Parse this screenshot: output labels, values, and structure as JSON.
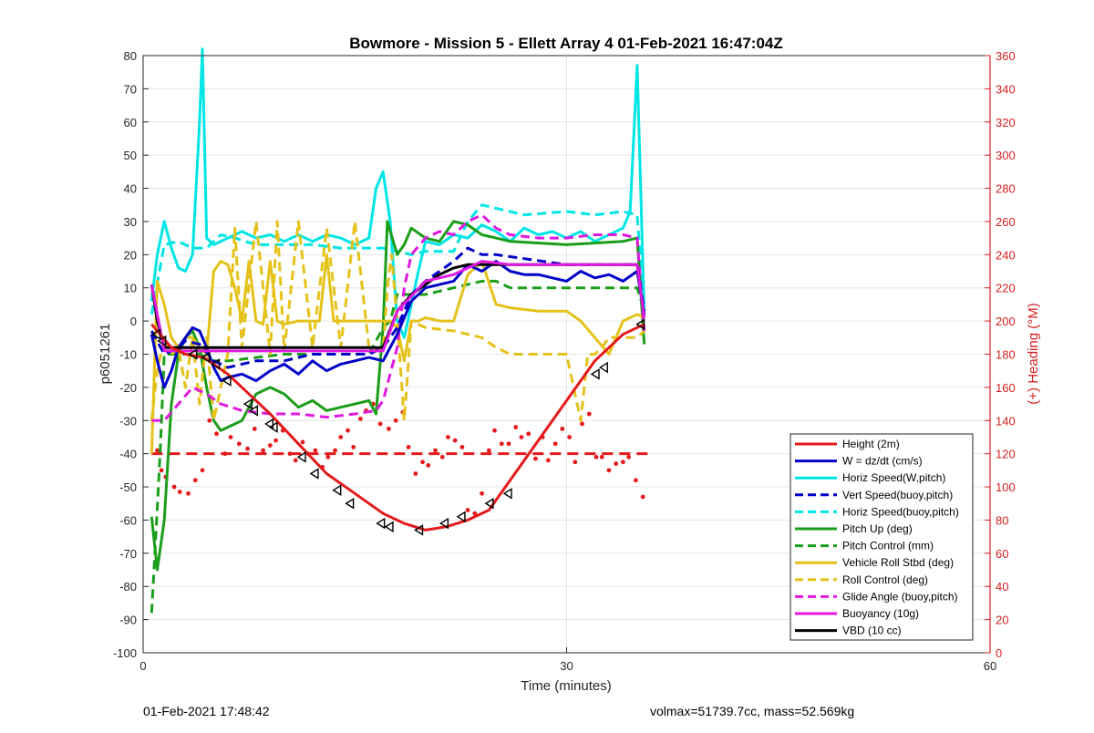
{
  "chart_data": {
    "type": "line",
    "title": "Bowmore - Mission 5 - Ellett Array 4 01-Feb-2021 16:47:04Z",
    "xlabel": "Time (minutes)",
    "ylabel": "p6051261",
    "y2label": "(+) Heading (°M)",
    "xlim": [
      0,
      60
    ],
    "ylim": [
      -100,
      80
    ],
    "y2lim": [
      0,
      360
    ],
    "xticks": [
      0,
      30,
      60
    ],
    "yticks": [
      -100,
      -90,
      -80,
      -70,
      -60,
      -50,
      -40,
      -30,
      -20,
      -10,
      0,
      10,
      20,
      30,
      40,
      50,
      60,
      70,
      80
    ],
    "y2ticks": [
      0,
      20,
      40,
      60,
      80,
      100,
      120,
      140,
      160,
      180,
      200,
      220,
      240,
      260,
      280,
      300,
      320,
      340,
      360
    ],
    "grid": true,
    "legend_position": "bottom-right",
    "colors": {
      "height": "#e41a1c",
      "w": "#0000c8",
      "cyan": "#00e5e5",
      "green": "#1a9e1a",
      "yellow": "#e5c21a",
      "magenta": "#e01ae0",
      "black": "#000000",
      "axis_right": "#d62020"
    },
    "series": [
      {
        "name": "Height (2m)",
        "color": "#e41a1c",
        "style": "solid",
        "x": [
          0.6,
          1.2,
          2,
          3,
          4.3,
          6,
          7.5,
          9,
          11,
          13,
          15,
          17,
          18.5,
          20,
          21.5,
          23,
          24.5,
          26,
          28,
          30,
          32,
          34,
          35.5
        ],
        "y": [
          -1,
          -4,
          -8,
          -10,
          -11,
          -16,
          -22,
          -28,
          -37,
          -46,
          -52,
          -58,
          -61,
          -63,
          -62,
          -60,
          -57,
          -48,
          -36,
          -24,
          -12,
          -4,
          -1
        ]
      },
      {
        "name": "W = dz/dt (cm/s)",
        "color": "#0000c8",
        "style": "solid",
        "x": [
          0.6,
          1,
          1.5,
          2,
          2.5,
          3,
          3.5,
          4,
          4.5,
          5,
          5.5,
          6,
          7,
          8,
          9,
          10,
          11,
          12,
          13,
          14,
          15,
          16,
          17,
          18,
          19,
          20,
          21,
          22,
          23,
          24,
          25,
          26,
          27,
          28,
          29,
          30,
          31,
          32,
          33,
          34,
          35,
          35.5
        ],
        "y": [
          -4,
          -12,
          -20,
          -15,
          -8,
          -5,
          -2,
          -3,
          -8,
          -14,
          -18,
          -17,
          -16,
          -18,
          -15,
          -13,
          -16,
          -12,
          -15,
          -13,
          -12,
          -11,
          -12,
          -4,
          6,
          10,
          11,
          12,
          17,
          15,
          18,
          15,
          14,
          14,
          13,
          12,
          15,
          13,
          14,
          12,
          15,
          2
        ]
      },
      {
        "name": "Horiz Speed(W,pitch)",
        "color": "#00e5e5",
        "style": "solid",
        "x": [
          0.6,
          1,
          1.5,
          2,
          2.5,
          3,
          3.5,
          4,
          4.2,
          4.5,
          5,
          6,
          7,
          8,
          9,
          10,
          11,
          12,
          13,
          14,
          15,
          16,
          16.5,
          17,
          17.5,
          18,
          18.5,
          19,
          19.5,
          20,
          21,
          22,
          23,
          24,
          25,
          26,
          27,
          28,
          29,
          30,
          31,
          32,
          33,
          34,
          34.5,
          35,
          35.5
        ],
        "y": [
          6,
          20,
          30,
          22,
          16,
          15,
          20,
          60,
          82,
          25,
          23,
          25,
          27,
          25,
          26,
          24,
          26,
          24,
          26,
          25,
          23,
          25,
          40,
          45,
          30,
          0,
          -5,
          5,
          15,
          24,
          23,
          26,
          25,
          29,
          27,
          24,
          28,
          26,
          27,
          25,
          27,
          24,
          26,
          28,
          33,
          77,
          2
        ]
      },
      {
        "name": "Vert Speed(buoy,pitch)",
        "color": "#0000c8",
        "style": "dashed",
        "x": [
          0.6,
          1.5,
          2.5,
          3,
          4,
          5,
          6,
          8,
          10,
          12,
          14,
          16,
          17,
          18,
          19,
          20,
          22,
          23,
          24,
          25,
          30,
          35,
          35.5
        ],
        "y": [
          -3,
          -10,
          -8,
          -6,
          -7,
          -12,
          -14,
          -12,
          -12,
          -10,
          -10,
          -10,
          -8,
          -2,
          8,
          12,
          18,
          22,
          20,
          20,
          17,
          17,
          3
        ]
      },
      {
        "name": "Horiz Speed(buoy,pitch)",
        "color": "#00e5e5",
        "style": "dashed",
        "x": [
          0.6,
          1.5,
          2.5,
          3.5,
          4.5,
          5.5,
          6.5,
          8,
          10,
          12,
          14,
          16,
          17,
          18,
          19,
          20,
          22,
          23,
          24,
          25,
          27,
          30,
          32,
          34,
          35,
          35.5
        ],
        "y": [
          2,
          23,
          24,
          22,
          22,
          26,
          25,
          23,
          23,
          23,
          22,
          22,
          22,
          21,
          20,
          21,
          21,
          30,
          35,
          34,
          32,
          33,
          32,
          33,
          32,
          3
        ]
      },
      {
        "name": "Pitch Up (deg)",
        "color": "#1a9e1a",
        "style": "solid",
        "x": [
          0.6,
          1,
          1.5,
          2,
          2.5,
          3,
          3.5,
          4,
          4.5,
          5,
          5.5,
          6,
          7,
          8,
          9,
          10,
          11,
          12,
          13,
          14,
          15,
          16,
          16.5,
          17,
          17.3,
          18,
          18.5,
          19,
          20,
          21,
          22,
          23,
          24,
          25,
          26,
          30,
          34,
          35,
          35.5
        ],
        "y": [
          -59,
          -75,
          -60,
          -25,
          -10,
          -5,
          -3,
          -8,
          -20,
          -30,
          -33,
          -32,
          -30,
          -22,
          -20,
          -22,
          -26,
          -24,
          -27,
          -26,
          -25,
          -24,
          -28,
          -2,
          30,
          20,
          23,
          28,
          25,
          24,
          30,
          29,
          26,
          25,
          24,
          23,
          24,
          25,
          -7
        ]
      },
      {
        "name": "Pitch Control (mm)",
        "color": "#1a9e1a",
        "style": "dashed",
        "x": [
          0.6,
          0.9,
          1.2,
          1.5,
          2,
          3,
          4,
          5,
          6,
          10,
          16,
          17,
          17.5,
          18,
          20,
          22,
          24,
          25,
          26,
          30,
          35,
          35.5
        ],
        "y": [
          -88,
          -65,
          -40,
          -10,
          -10,
          -10,
          -10,
          -12,
          -12,
          -10,
          -10,
          -2,
          0,
          8,
          8,
          10,
          12,
          12,
          10,
          10,
          10,
          3
        ]
      },
      {
        "name": "Vehicle Roll Stbd (deg)",
        "color": "#e5c21a",
        "style": "solid",
        "x": [
          0.6,
          1,
          1.5,
          2,
          2.5,
          3,
          3.5,
          4,
          4.5,
          5,
          5.5,
          6,
          6.5,
          7,
          7.5,
          8,
          8.5,
          9,
          9.5,
          10,
          11,
          12,
          12.5,
          13,
          13.5,
          14,
          15,
          16,
          16.5,
          17,
          17.5,
          18,
          18.5,
          19,
          19.5,
          20,
          21,
          22,
          23,
          24,
          25,
          26,
          28,
          30,
          31,
          32,
          33,
          34,
          35,
          35.5
        ],
        "y": [
          -40,
          12,
          5,
          -5,
          -8,
          -5,
          -5,
          -8,
          -10,
          15,
          18,
          17,
          10,
          0,
          18,
          0,
          -1,
          18,
          0,
          -1,
          0,
          0,
          0,
          20,
          0,
          0,
          0,
          0,
          0,
          0,
          0,
          -2,
          -12,
          0,
          0,
          1,
          0,
          0,
          14,
          18,
          5,
          4,
          3,
          3,
          0,
          -5,
          -10,
          0,
          2,
          1
        ]
      },
      {
        "name": "Roll Control (deg)",
        "color": "#e5c21a",
        "style": "dashed",
        "x": [
          0.6,
          1,
          1.5,
          2,
          2.5,
          3,
          3.5,
          4,
          4.5,
          5,
          6,
          6.5,
          7,
          8,
          9,
          9.5,
          10,
          11,
          12,
          13,
          14,
          15,
          16,
          17,
          17.3,
          17.6,
          18,
          18.5,
          19,
          20,
          22,
          24,
          25,
          26,
          28,
          30,
          31,
          31.5,
          32,
          32.5,
          33,
          35,
          35.5
        ],
        "y": [
          -30,
          -15,
          -5,
          -10,
          -8,
          -20,
          -5,
          -25,
          -5,
          -30,
          -10,
          28,
          -8,
          30,
          -10,
          30,
          -9,
          30,
          -8,
          28,
          -8,
          30,
          -8,
          -9,
          10,
          20,
          0,
          -30,
          0,
          -2,
          -3,
          -5,
          -8,
          -10,
          -10,
          -10,
          -30,
          -10,
          -10,
          -8,
          -5,
          -5,
          -3
        ]
      },
      {
        "name": "Glide Angle (buoy,pitch)",
        "color": "#e01ae0",
        "style": "dashed",
        "x": [
          0.6,
          1.5,
          2.5,
          3.5,
          4.5,
          5.5,
          7,
          9,
          11,
          13,
          15,
          16.5,
          17,
          18,
          18.5,
          19,
          20,
          21,
          22,
          23,
          24,
          25,
          26,
          28,
          30,
          32,
          34,
          35,
          35.5
        ],
        "y": [
          -30,
          -30,
          -25,
          -20,
          -22,
          -25,
          -27,
          -28,
          -28,
          -29,
          -28,
          -27,
          -24,
          -8,
          10,
          20,
          25,
          27,
          26,
          30,
          32,
          28,
          26,
          25,
          25,
          26,
          26,
          25,
          -3
        ]
      },
      {
        "name": "Buoyancy (10g)",
        "color": "#e01ae0",
        "style": "solid",
        "x": [
          0.6,
          1.5,
          3,
          5,
          8,
          10,
          12,
          14,
          16,
          17,
          18,
          20,
          22,
          24,
          26,
          28,
          30,
          32,
          34,
          35,
          35.5
        ],
        "y": [
          11,
          -9,
          -9,
          -9,
          -9,
          -9,
          -9,
          -9,
          -9,
          -9,
          3,
          12,
          14,
          18,
          17,
          17,
          17,
          17,
          17,
          17,
          1
        ]
      },
      {
        "name": "VBD (10 cc)",
        "color": "#000000",
        "style": "solid",
        "x": [
          0.6,
          1,
          1.5,
          3,
          5,
          8,
          10,
          12,
          14,
          16,
          17,
          18,
          19,
          20,
          21,
          22,
          23,
          24,
          25,
          27,
          30,
          33,
          35,
          35.5
        ],
        "y": [
          11,
          0,
          -8,
          -8,
          -8,
          -8,
          -8,
          -8,
          -8,
          -8,
          -8,
          3,
          8,
          11,
          14,
          16,
          17,
          17,
          17,
          17,
          17,
          17,
          17,
          1
        ]
      }
    ],
    "markers": {
      "series": "Height (2m)",
      "x": [
        1,
        1.4,
        3.6,
        4.5,
        5.2,
        6,
        7.5,
        7.9,
        9,
        9.3,
        11.3,
        12.2,
        13.8,
        14.7,
        16.9,
        17.5,
        19.6,
        21.4,
        22.6,
        24.6,
        25.9,
        32.1,
        32.7,
        35.3
      ],
      "y": [
        -4,
        -6,
        -10,
        -11,
        -13,
        -18,
        -25,
        -27,
        -31,
        -32,
        -41,
        -46,
        -51,
        -55,
        -61,
        -62,
        -63,
        -61,
        -59,
        -55,
        -52,
        -16,
        -14,
        -1
      ]
    },
    "heading_commanded": {
      "color": "#e41a1c",
      "style": "dashed",
      "x": [
        0.6,
        36
      ],
      "y": [
        120,
        120
      ]
    },
    "heading_points": {
      "color": "#e41a1c",
      "x": [
        1,
        1.3,
        1.6,
        2.2,
        2.6,
        3.2,
        3.7,
        4.2,
        4.7,
        5.2,
        5.8,
        6.2,
        6.8,
        7.4,
        7.9,
        8.5,
        9.0,
        9.4,
        9.9,
        10.4,
        10.8,
        11.3,
        11.7,
        12.2,
        12.7,
        13.1,
        13.6,
        14.0,
        14.5,
        14.9,
        15.4,
        15.8,
        16.3,
        16.8,
        17.4,
        17.9,
        18.4,
        18.8,
        19.3,
        19.8,
        20.2,
        20.7,
        21.2,
        21.6,
        22.1,
        22.6,
        23.0,
        23.5,
        24.0,
        24.5,
        24.9,
        25.4,
        25.9,
        26.4,
        26.8,
        27.3,
        27.8,
        28.3,
        28.7,
        29.2,
        29.7,
        30.2,
        30.6,
        31.1,
        31.6,
        32.1,
        32.5,
        33.0,
        33.5,
        34.0,
        34.4,
        34.9,
        35.4
      ],
      "y": [
        122,
        110,
        106,
        100,
        97,
        96,
        104,
        110,
        140,
        132,
        120,
        130,
        126,
        123,
        135,
        122,
        125,
        128,
        134,
        120,
        116,
        127,
        120,
        122,
        112,
        118,
        122,
        130,
        134,
        124,
        141,
        146,
        150,
        138,
        135,
        140,
        145,
        124,
        108,
        115,
        113,
        122,
        118,
        130,
        128,
        124,
        86,
        84,
        96,
        122,
        134,
        126,
        126,
        136,
        130,
        132,
        117,
        130,
        116,
        126,
        135,
        130,
        115,
        138,
        144,
        118,
        118,
        110,
        114,
        115,
        118,
        104,
        94
      ]
    },
    "footer": {
      "left": "01-Feb-2021 17:48:42",
      "right": "volmax=51739.7cc, mass=52.569kg"
    }
  }
}
